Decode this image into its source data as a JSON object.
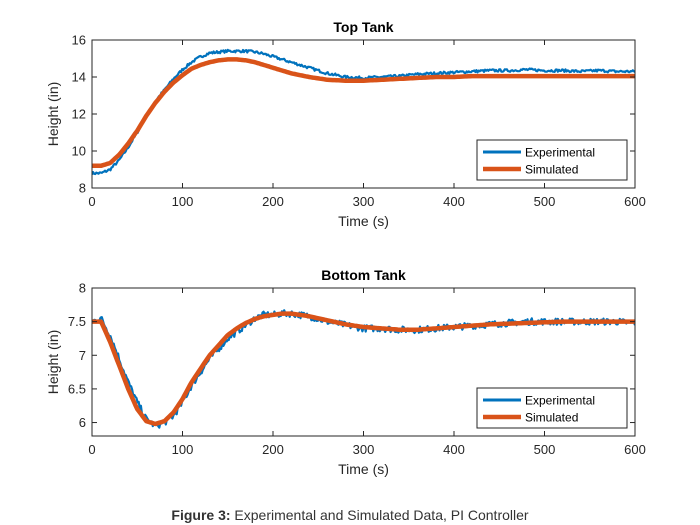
{
  "figure": {
    "caption_label": "Figure 3:",
    "caption_text": "Experimental and Simulated Data, PI Controller"
  },
  "chart_data": [
    {
      "type": "line",
      "title": "Top Tank",
      "xlabel": "Time (s)",
      "ylabel": "Height (in)",
      "xlim": [
        0,
        600
      ],
      "ylim": [
        8,
        16
      ],
      "xticks": [
        0,
        100,
        200,
        300,
        400,
        500,
        600
      ],
      "yticks": [
        8,
        10,
        12,
        14,
        16
      ],
      "grid": false,
      "legend_position": "lower-right",
      "series": [
        {
          "name": "Experimental",
          "color": "#0072BD",
          "noisy": true,
          "x": [
            0,
            10,
            20,
            30,
            40,
            50,
            60,
            70,
            80,
            90,
            100,
            110,
            120,
            130,
            140,
            150,
            160,
            170,
            180,
            190,
            200,
            220,
            240,
            260,
            280,
            300,
            320,
            340,
            360,
            380,
            400,
            420,
            440,
            460,
            480,
            500,
            520,
            540,
            560,
            580,
            600
          ],
          "y": [
            8.8,
            8.8,
            9.0,
            9.5,
            10.2,
            11.0,
            11.9,
            12.7,
            13.3,
            13.9,
            14.4,
            14.8,
            15.1,
            15.3,
            15.35,
            15.4,
            15.4,
            15.4,
            15.35,
            15.25,
            15.1,
            14.8,
            14.5,
            14.2,
            14.0,
            13.95,
            14.0,
            14.05,
            14.15,
            14.2,
            14.25,
            14.3,
            14.35,
            14.35,
            14.4,
            14.35,
            14.35,
            14.3,
            14.35,
            14.3,
            14.3
          ]
        },
        {
          "name": "Simulated",
          "color": "#D95319",
          "noisy": false,
          "x": [
            0,
            10,
            20,
            30,
            40,
            50,
            60,
            70,
            80,
            90,
            100,
            110,
            120,
            130,
            140,
            150,
            160,
            170,
            180,
            190,
            200,
            220,
            240,
            260,
            280,
            300,
            320,
            340,
            360,
            380,
            400,
            420,
            440,
            460,
            480,
            500,
            520,
            540,
            560,
            580,
            600
          ],
          "y": [
            9.2,
            9.2,
            9.35,
            9.8,
            10.4,
            11.1,
            11.9,
            12.6,
            13.2,
            13.7,
            14.1,
            14.45,
            14.65,
            14.8,
            14.9,
            14.95,
            14.95,
            14.9,
            14.8,
            14.65,
            14.5,
            14.2,
            14.0,
            13.85,
            13.8,
            13.8,
            13.85,
            13.9,
            13.95,
            14.0,
            14.0,
            14.05,
            14.05,
            14.05,
            14.05,
            14.05,
            14.05,
            14.05,
            14.05,
            14.05,
            14.05
          ]
        }
      ]
    },
    {
      "type": "line",
      "title": "Bottom Tank",
      "xlabel": "Time (s)",
      "ylabel": "Height (in)",
      "xlim": [
        0,
        600
      ],
      "ylim": [
        5.8,
        8
      ],
      "xticks": [
        0,
        100,
        200,
        300,
        400,
        500,
        600
      ],
      "yticks": [
        6,
        6.5,
        7,
        7.5,
        8
      ],
      "grid": false,
      "legend_position": "lower-right",
      "series": [
        {
          "name": "Experimental",
          "color": "#0072BD",
          "noisy": true,
          "x": [
            0,
            10,
            20,
            30,
            40,
            50,
            60,
            70,
            80,
            90,
            100,
            110,
            120,
            130,
            140,
            150,
            160,
            170,
            180,
            190,
            200,
            210,
            220,
            230,
            240,
            260,
            280,
            300,
            320,
            340,
            360,
            380,
            400,
            420,
            440,
            460,
            480,
            500,
            520,
            540,
            560,
            580,
            600
          ],
          "y": [
            7.5,
            7.55,
            7.3,
            6.95,
            6.6,
            6.3,
            6.05,
            5.95,
            6.0,
            6.1,
            6.3,
            6.55,
            6.75,
            6.95,
            7.1,
            7.25,
            7.35,
            7.45,
            7.55,
            7.6,
            7.6,
            7.62,
            7.62,
            7.6,
            7.58,
            7.5,
            7.45,
            7.4,
            7.4,
            7.38,
            7.38,
            7.4,
            7.42,
            7.44,
            7.46,
            7.48,
            7.5,
            7.5,
            7.5,
            7.5,
            7.5,
            7.5,
            7.48
          ]
        },
        {
          "name": "Simulated",
          "color": "#D95319",
          "noisy": false,
          "x": [
            0,
            10,
            20,
            30,
            40,
            50,
            60,
            70,
            80,
            90,
            100,
            110,
            120,
            130,
            140,
            150,
            160,
            170,
            180,
            190,
            200,
            210,
            220,
            230,
            240,
            260,
            280,
            300,
            320,
            340,
            360,
            380,
            400,
            420,
            440,
            460,
            480,
            500,
            520,
            540,
            560,
            580,
            600
          ],
          "y": [
            7.5,
            7.5,
            7.2,
            6.85,
            6.5,
            6.2,
            6.02,
            5.98,
            6.02,
            6.15,
            6.35,
            6.6,
            6.8,
            7.0,
            7.15,
            7.3,
            7.4,
            7.48,
            7.54,
            7.58,
            7.6,
            7.62,
            7.62,
            7.6,
            7.58,
            7.52,
            7.46,
            7.42,
            7.4,
            7.38,
            7.38,
            7.4,
            7.42,
            7.44,
            7.46,
            7.47,
            7.48,
            7.49,
            7.5,
            7.5,
            7.5,
            7.5,
            7.5
          ]
        }
      ]
    }
  ]
}
